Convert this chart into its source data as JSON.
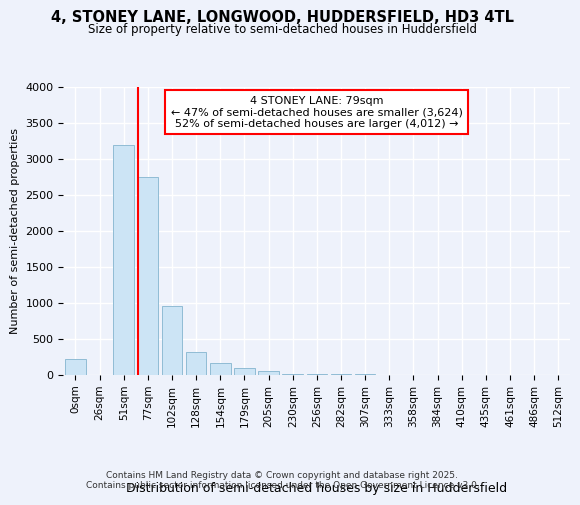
{
  "title": "4, STONEY LANE, LONGWOOD, HUDDERSFIELD, HD3 4TL",
  "subtitle": "Size of property relative to semi-detached houses in Huddersfield",
  "xlabel": "Distribution of semi-detached houses by size in Huddersfield",
  "ylabel": "Number of semi-detached properties",
  "categories": [
    "0sqm",
    "26sqm",
    "51sqm",
    "77sqm",
    "102sqm",
    "128sqm",
    "154sqm",
    "179sqm",
    "205sqm",
    "230sqm",
    "256sqm",
    "282sqm",
    "307sqm",
    "333sqm",
    "358sqm",
    "384sqm",
    "410sqm",
    "435sqm",
    "461sqm",
    "486sqm",
    "512sqm"
  ],
  "values": [
    220,
    0,
    3200,
    2750,
    950,
    310,
    155,
    90,
    45,
    10,
    5,
    5,
    3,
    0,
    0,
    0,
    0,
    0,
    0,
    0,
    0
  ],
  "bar_color": "#cce4f5",
  "bar_edge_color": "#90bcd4",
  "vline_color": "red",
  "annotation_text": "4 STONEY LANE: 79sqm\n← 47% of semi-detached houses are smaller (3,624)\n52% of semi-detached houses are larger (4,012) →",
  "annotation_box_color": "white",
  "annotation_border_color": "red",
  "footer": "Contains HM Land Registry data © Crown copyright and database right 2025.\nContains public sector information licensed under the Open Government Licence v3.0.",
  "ylim": [
    0,
    4000
  ],
  "background_color": "#eef2fb",
  "grid_color": "white"
}
